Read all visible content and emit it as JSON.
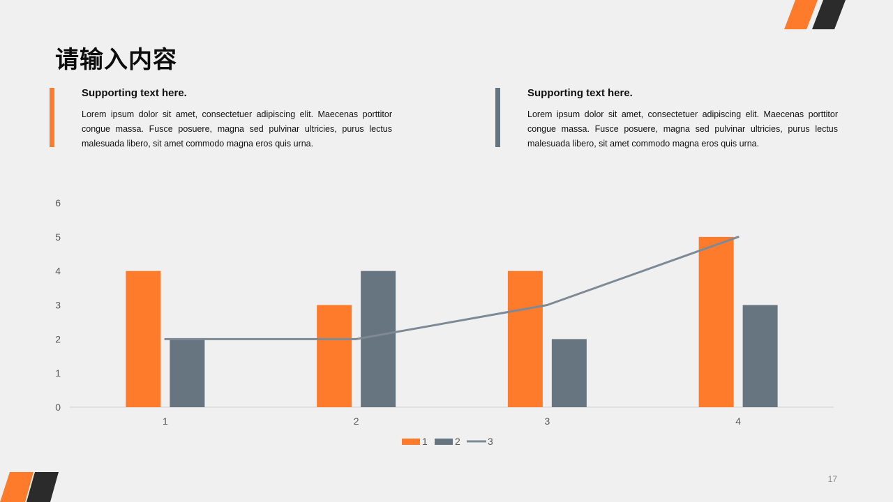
{
  "slide": {
    "title": "请输入内容",
    "page_number": "17"
  },
  "blocks": [
    {
      "heading": "Supporting text here.",
      "body": "Lorem ipsum dolor sit amet, consectetuer adipiscing elit. Maecenas porttitor congue massa. Fusce posuere, magna sed pulvinar ultricies, purus lectus malesuada libero, sit amet commodo magna eros quis urna."
    },
    {
      "heading": "Supporting text here.",
      "body": "Lorem ipsum dolor sit amet, consectetuer adipiscing elit. Maecenas porttitor congue massa. Fusce posuere, magna sed pulvinar ultricies, purus lectus malesuada libero, sit amet commodo magna eros quis urna."
    }
  ],
  "colors": {
    "accent_orange": "#ff7b2c",
    "accent_gray": "#677580",
    "line_gray": "#7d8a96",
    "dark_stripe": "#2b2b2b",
    "axis_text": "#595959"
  },
  "chart_data": {
    "type": "bar",
    "categories": [
      "1",
      "2",
      "3",
      "4"
    ],
    "series": [
      {
        "name": "1",
        "type": "bar",
        "values": [
          4,
          3,
          4,
          5
        ]
      },
      {
        "name": "2",
        "type": "bar",
        "values": [
          2,
          4,
          2,
          3
        ]
      },
      {
        "name": "3",
        "type": "line",
        "values": [
          2,
          2,
          3,
          5
        ]
      }
    ],
    "ylim": [
      0,
      6
    ],
    "yticks": [
      "0",
      "1",
      "2",
      "3",
      "4",
      "5",
      "6"
    ],
    "grid": false,
    "legend": "bottom"
  }
}
